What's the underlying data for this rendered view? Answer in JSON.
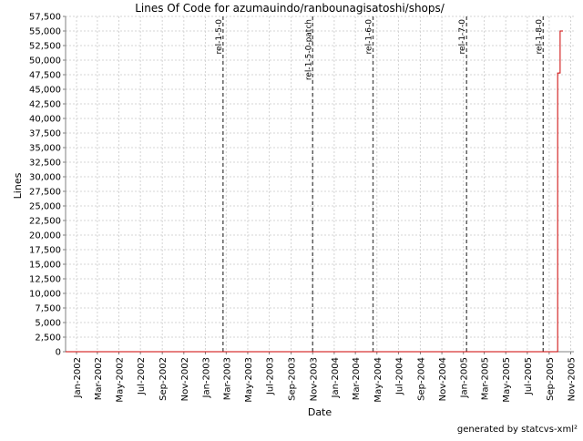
{
  "chart_data": {
    "type": "line",
    "title": "Lines Of Code for azumauindo/ranbounagisatoshi/shops/",
    "xlabel": "Date",
    "ylabel": "Lines",
    "ylim": [
      0,
      57500
    ],
    "xlim": [
      "2001-12-01",
      "2005-11-10"
    ],
    "grid": true,
    "y_ticks": [
      0,
      2500,
      5000,
      7500,
      10000,
      12500,
      15000,
      17500,
      20000,
      22500,
      25000,
      27500,
      30000,
      32500,
      35000,
      37500,
      40000,
      42500,
      45000,
      47500,
      50000,
      52500,
      55000,
      57500
    ],
    "y_tick_labels": [
      "0",
      "2,500",
      "5,000",
      "7,500",
      "10,000",
      "12,500",
      "15,000",
      "17,500",
      "20,000",
      "22,500",
      "25,000",
      "27,500",
      "30,000",
      "32,500",
      "35,000",
      "37,500",
      "40,000",
      "42,500",
      "45,000",
      "47,500",
      "50,000",
      "52,500",
      "55,000",
      "57,500"
    ],
    "x_ticks": [
      "2002-01-01",
      "2002-03-01",
      "2002-05-01",
      "2002-07-01",
      "2002-09-01",
      "2002-11-01",
      "2003-01-01",
      "2003-03-01",
      "2003-05-01",
      "2003-07-01",
      "2003-09-01",
      "2003-11-01",
      "2004-01-01",
      "2004-03-01",
      "2004-05-01",
      "2004-07-01",
      "2004-09-01",
      "2004-11-01",
      "2005-01-01",
      "2005-03-01",
      "2005-05-01",
      "2005-07-01",
      "2005-09-01",
      "2005-11-01"
    ],
    "x_tick_labels": [
      "Jan-2002",
      "Mar-2002",
      "May-2002",
      "Jul-2002",
      "Sep-2002",
      "Nov-2002",
      "Jan-2003",
      "Mar-2003",
      "May-2003",
      "Jul-2003",
      "Sep-2003",
      "Nov-2003",
      "Jan-2004",
      "Mar-2004",
      "May-2004",
      "Jul-2004",
      "Sep-2004",
      "Nov-2004",
      "Jan-2005",
      "Mar-2005",
      "May-2005",
      "Jul-2005",
      "Sep-2005",
      "Nov-2005"
    ],
    "series": [
      {
        "color": "#cc0000",
        "x": [
          "2001-12-01",
          "2005-09-25",
          "2005-09-25",
          "2005-10-02",
          "2005-10-02",
          "2005-10-10"
        ],
        "y": [
          0,
          0,
          47800,
          47800,
          55000,
          55000
        ]
      }
    ],
    "markers": [
      {
        "label": "rel-1-5-0",
        "date": "2003-02-20"
      },
      {
        "label": "rel-1-5-0-patch",
        "date": "2003-11-01"
      },
      {
        "label": "rel-1-6-0",
        "date": "2004-04-20"
      },
      {
        "label": "rel-1-7-0",
        "date": "2005-01-10"
      },
      {
        "label": "rel-1-8-0",
        "date": "2005-08-15"
      }
    ],
    "footer": "generated by statcvs-xml²"
  }
}
